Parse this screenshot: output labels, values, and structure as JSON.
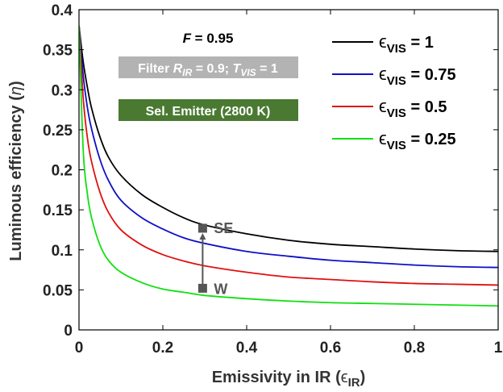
{
  "chart_data": {
    "type": "line",
    "xlabel": "Emissivity in IR (",
    "xlabel_symbol": "ϵ",
    "xlabel_sub": "IR",
    "xlabel_end": ")",
    "ylabel": "Luminous efficiency (",
    "ylabel_symbol": "η",
    "ylabel_end": ")",
    "xlim": [
      0,
      1
    ],
    "ylim": [
      0,
      0.4
    ],
    "xticks": [
      "0",
      "0.2",
      "0.4",
      "0.6",
      "0.8",
      "1"
    ],
    "yticks": [
      "0",
      "0.05",
      "0.1",
      "0.15",
      "0.2",
      "0.25",
      "0.3",
      "0.35",
      "0.4"
    ],
    "grid": false,
    "legend_position": "top-right",
    "x": [
      0,
      0.01,
      0.02,
      0.03,
      0.05,
      0.07,
      0.1,
      0.15,
      0.2,
      0.25,
      0.3,
      0.4,
      0.5,
      0.6,
      0.7,
      0.8,
      0.9,
      1.0
    ],
    "series": [
      {
        "name": "ϵVIS = 1",
        "symbol": "ϵ",
        "sub": "VIS",
        "value_text": " = 1",
        "color": "#000000",
        "values": [
          0.38,
          0.335,
          0.303,
          0.277,
          0.241,
          0.216,
          0.193,
          0.169,
          0.153,
          0.14,
          0.131,
          0.12,
          0.112,
          0.107,
          0.104,
          0.101,
          0.099,
          0.098
        ]
      },
      {
        "name": "ϵVIS = 0.75",
        "symbol": "ϵ",
        "sub": "VIS",
        "value_text": " = 0.75",
        "color": "#1010c8",
        "values": [
          0.38,
          0.318,
          0.278,
          0.251,
          0.213,
          0.187,
          0.162,
          0.14,
          0.126,
          0.115,
          0.108,
          0.098,
          0.092,
          0.087,
          0.084,
          0.081,
          0.079,
          0.078
        ]
      },
      {
        "name": "ϵVIS = 0.5",
        "symbol": "ϵ",
        "sub": "VIS",
        "value_text": " = 0.5",
        "color": "#e01010",
        "values": [
          0.38,
          0.29,
          0.24,
          0.21,
          0.172,
          0.147,
          0.125,
          0.106,
          0.094,
          0.086,
          0.08,
          0.072,
          0.066,
          0.063,
          0.06,
          0.058,
          0.057,
          0.056
        ]
      },
      {
        "name": "ϵVIS = 0.25",
        "symbol": "ϵ",
        "sub": "VIS",
        "value_text": " = 0.25",
        "color": "#10e010",
        "values": [
          0.38,
          0.225,
          0.17,
          0.14,
          0.106,
          0.087,
          0.072,
          0.059,
          0.051,
          0.047,
          0.043,
          0.039,
          0.036,
          0.034,
          0.033,
          0.032,
          0.031,
          0.03
        ]
      }
    ],
    "annotations": {
      "f_label_symbol": "F",
      "f_label_value": " = 0.95",
      "filter_prefix": "Filter ",
      "filter_r": "R",
      "filter_r_sub": "IR",
      "filter_mid": " = 0.9; ",
      "filter_t": "T",
      "filter_t_sub": "VIS",
      "filter_end": " = 1",
      "filter_color": "#b3b3b3",
      "emitter_label": "Sel. Emitter (2800 K)",
      "emitter_color": "#4a7a32",
      "marker_color": "#555555",
      "se_label": "SE",
      "w_label": "W",
      "marker_x": 0.295,
      "se_y": 0.127,
      "w_y": 0.052
    }
  }
}
